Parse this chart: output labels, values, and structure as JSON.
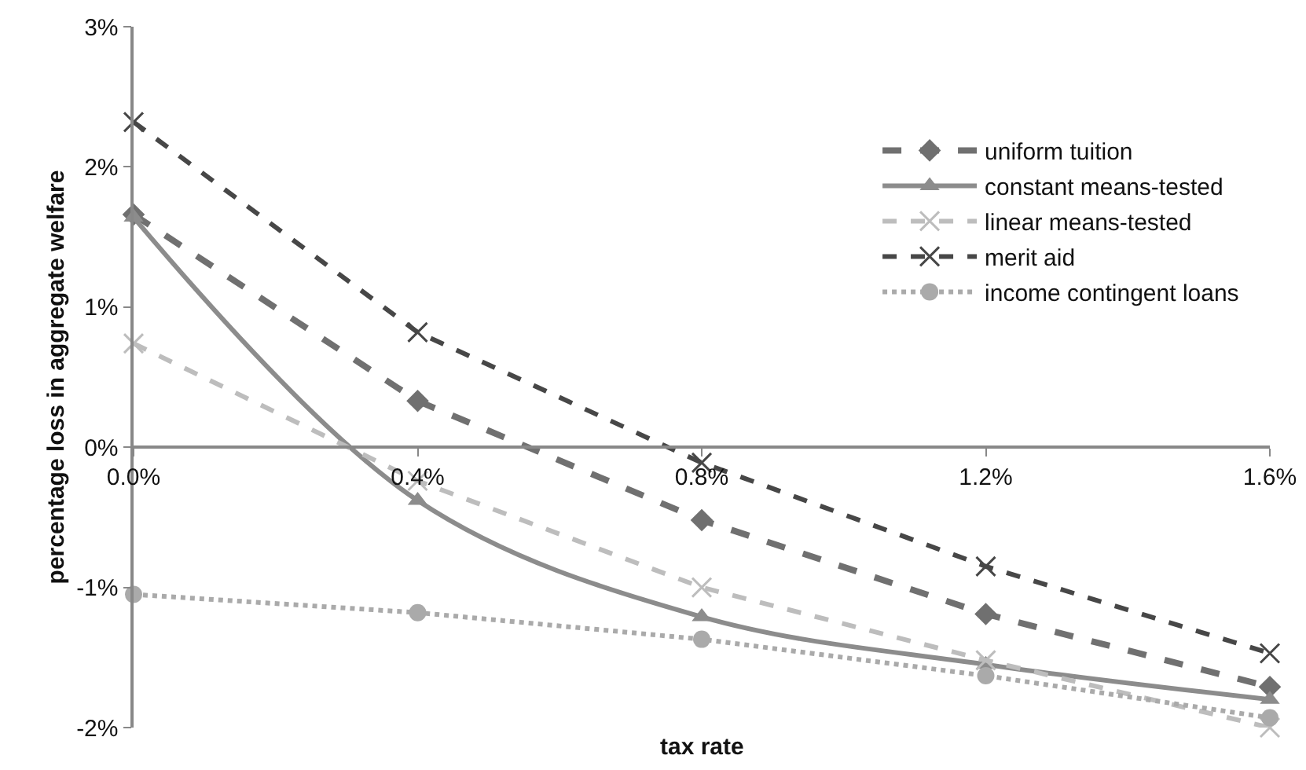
{
  "chart_data": {
    "type": "line",
    "xlabel": "tax rate",
    "ylabel": "percentage loss in aggregate welfare",
    "x": [
      0,
      0.4,
      0.8,
      1.2,
      1.6
    ],
    "series": [
      {
        "name": "uniform tuition",
        "color": "#707070",
        "marker": "diamond",
        "line_style": "dashed",
        "values": [
          1.66,
          0.33,
          -0.52,
          -1.19,
          -1.71
        ]
      },
      {
        "name": "constant means-tested",
        "color": "#8c8c8c",
        "marker": "triangle",
        "line_style": "solid",
        "values": [
          1.64,
          -0.38,
          -1.21,
          -1.55,
          -1.8
        ]
      },
      {
        "name": "linear means-tested",
        "color": "#bdbdbd",
        "marker": "cross",
        "line_style": "dashed",
        "values": [
          0.74,
          -0.24,
          -1.0,
          -1.52,
          -2.0
        ]
      },
      {
        "name": "merit aid",
        "color": "#474747",
        "marker": "cross",
        "line_style": "dashed",
        "values": [
          2.32,
          0.82,
          -0.11,
          -0.85,
          -1.47
        ]
      },
      {
        "name": "income contingent loans",
        "color": "#aaaaaa",
        "marker": "circle",
        "line_style": "dotted",
        "values": [
          -1.05,
          -1.18,
          -1.37,
          -1.63,
          -1.93
        ]
      }
    ],
    "xlim": [
      0,
      1.6
    ],
    "xticks": [
      {
        "value": 0,
        "label": "0.0%"
      },
      {
        "value": 0.4,
        "label": "0.4%"
      },
      {
        "value": 0.8,
        "label": "0.8%"
      },
      {
        "value": 1.2,
        "label": "1.2%"
      },
      {
        "value": 1.6,
        "label": "1.6%"
      }
    ],
    "ylim": [
      -2,
      3
    ],
    "yticks": [
      {
        "value": -2,
        "label": "-2%"
      },
      {
        "value": -1,
        "label": "-1%"
      },
      {
        "value": 0,
        "label": "0%"
      },
      {
        "value": 1,
        "label": "1%"
      },
      {
        "value": 2,
        "label": "2%"
      },
      {
        "value": 3,
        "label": "3%"
      }
    ],
    "grid": false,
    "legend": "top right"
  }
}
